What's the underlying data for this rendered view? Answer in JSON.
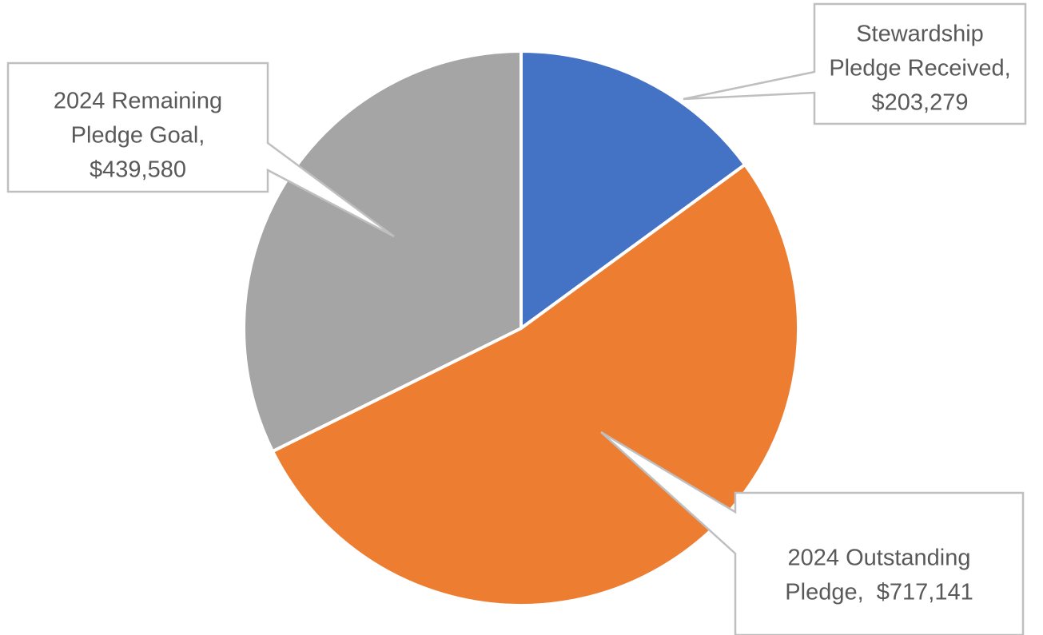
{
  "chart_data": {
    "type": "pie",
    "title": "",
    "start_angle_deg": 0,
    "direction": "clockwise",
    "slices": [
      {
        "label": "Stewardship Pledge Received",
        "value": 203279,
        "value_label": "$203,279",
        "color": "#4472C4",
        "label_lines": [
          "Stewardship",
          "Pledge Received,",
          "$203,279"
        ]
      },
      {
        "label": "2024 Outstanding Pledge",
        "value": 717141,
        "value_label": "$717,141",
        "color": "#ED7D31",
        "label_lines": [
          "2024 Outstanding",
          "Pledge,  $717,141"
        ]
      },
      {
        "label": "2024 Remaining Pledge Goal",
        "value": 439580,
        "value_label": "$439,580",
        "color": "#A5A5A5",
        "label_lines": [
          "2024 Remaining",
          "Pledge Goal,",
          "$439,580"
        ]
      }
    ],
    "data_labels": "callout",
    "legend": "none"
  }
}
